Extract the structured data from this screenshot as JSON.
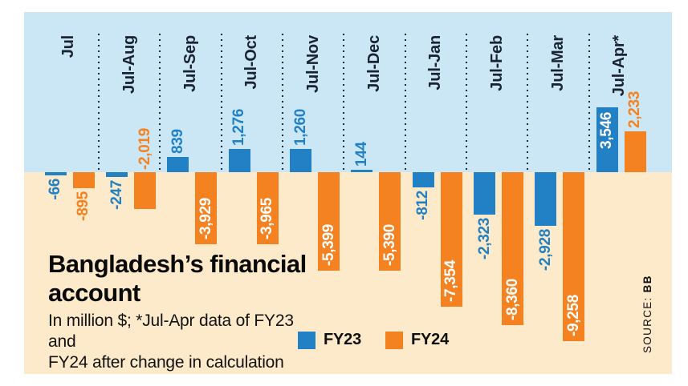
{
  "chart_data": {
    "type": "bar",
    "title": "Bangladesh’s financial account",
    "title_lines": [
      "Bangladesh’s financial",
      "account"
    ],
    "subtitle_lines": [
      "In million $; *Jul-Apr data of FY23 and",
      "FY24 after change in calculation"
    ],
    "unit": "million $",
    "source_label": "SOURCE:",
    "source_value": "BB",
    "categories": [
      "Jul",
      "Jul-Aug",
      "Jul-Sep",
      "Jul-Oct",
      "Jul-Nov",
      "Jul-Dec",
      "Jul-Jan",
      "Jul-Feb",
      "Jul-Mar",
      "Jul-Apr*"
    ],
    "series": [
      {
        "name": "FY23",
        "color": "#2181c4",
        "values": [
          -66,
          -247,
          839,
          1276,
          1260,
          144,
          -812,
          -2323,
          -2928,
          3546
        ],
        "labels": [
          "-66",
          "-247",
          "839",
          "1,276",
          "1,260",
          "144",
          "-812",
          "-2,323",
          "-2,928",
          "3,546"
        ],
        "label_placements": [
          "below",
          "below",
          "above",
          "above",
          "above",
          "above",
          "below",
          "below",
          "below",
          "inside-top"
        ]
      },
      {
        "name": "FY24",
        "color": "#f58220",
        "values": [
          -895,
          -2019,
          -3929,
          -3965,
          -5399,
          -5390,
          -7354,
          -8360,
          -9258,
          2233
        ],
        "labels": [
          "-895",
          "-2,019",
          "-3,929",
          "-3,965",
          "-5,399",
          "-5,390",
          "-7,354",
          "-8,360",
          "-9,258",
          "2,233"
        ],
        "label_placements": [
          "below",
          "above-zero",
          "inside-bottom",
          "inside-bottom",
          "inside-bottom",
          "inside-bottom",
          "inside-bottom",
          "inside-bottom",
          "inside-bottom",
          "above"
        ]
      }
    ],
    "legend": [
      {
        "label": "FY23",
        "color": "#2181c4"
      },
      {
        "label": "FY24",
        "color": "#f58220"
      }
    ],
    "colors": {
      "positive_region_bg": "#cbe7f6",
      "negative_region_bg": "#fdeaca",
      "fy23": "#2181c4",
      "fy24": "#f58220",
      "inside_label": "#ffffff",
      "separator": "#1c2b39",
      "category_label": "#1a2430"
    },
    "axis": {
      "zero_line_is_region_boundary": true,
      "approx_value_range": [
        -9500,
        3800
      ],
      "grid": "dotted vertical category separators above zero line"
    }
  }
}
